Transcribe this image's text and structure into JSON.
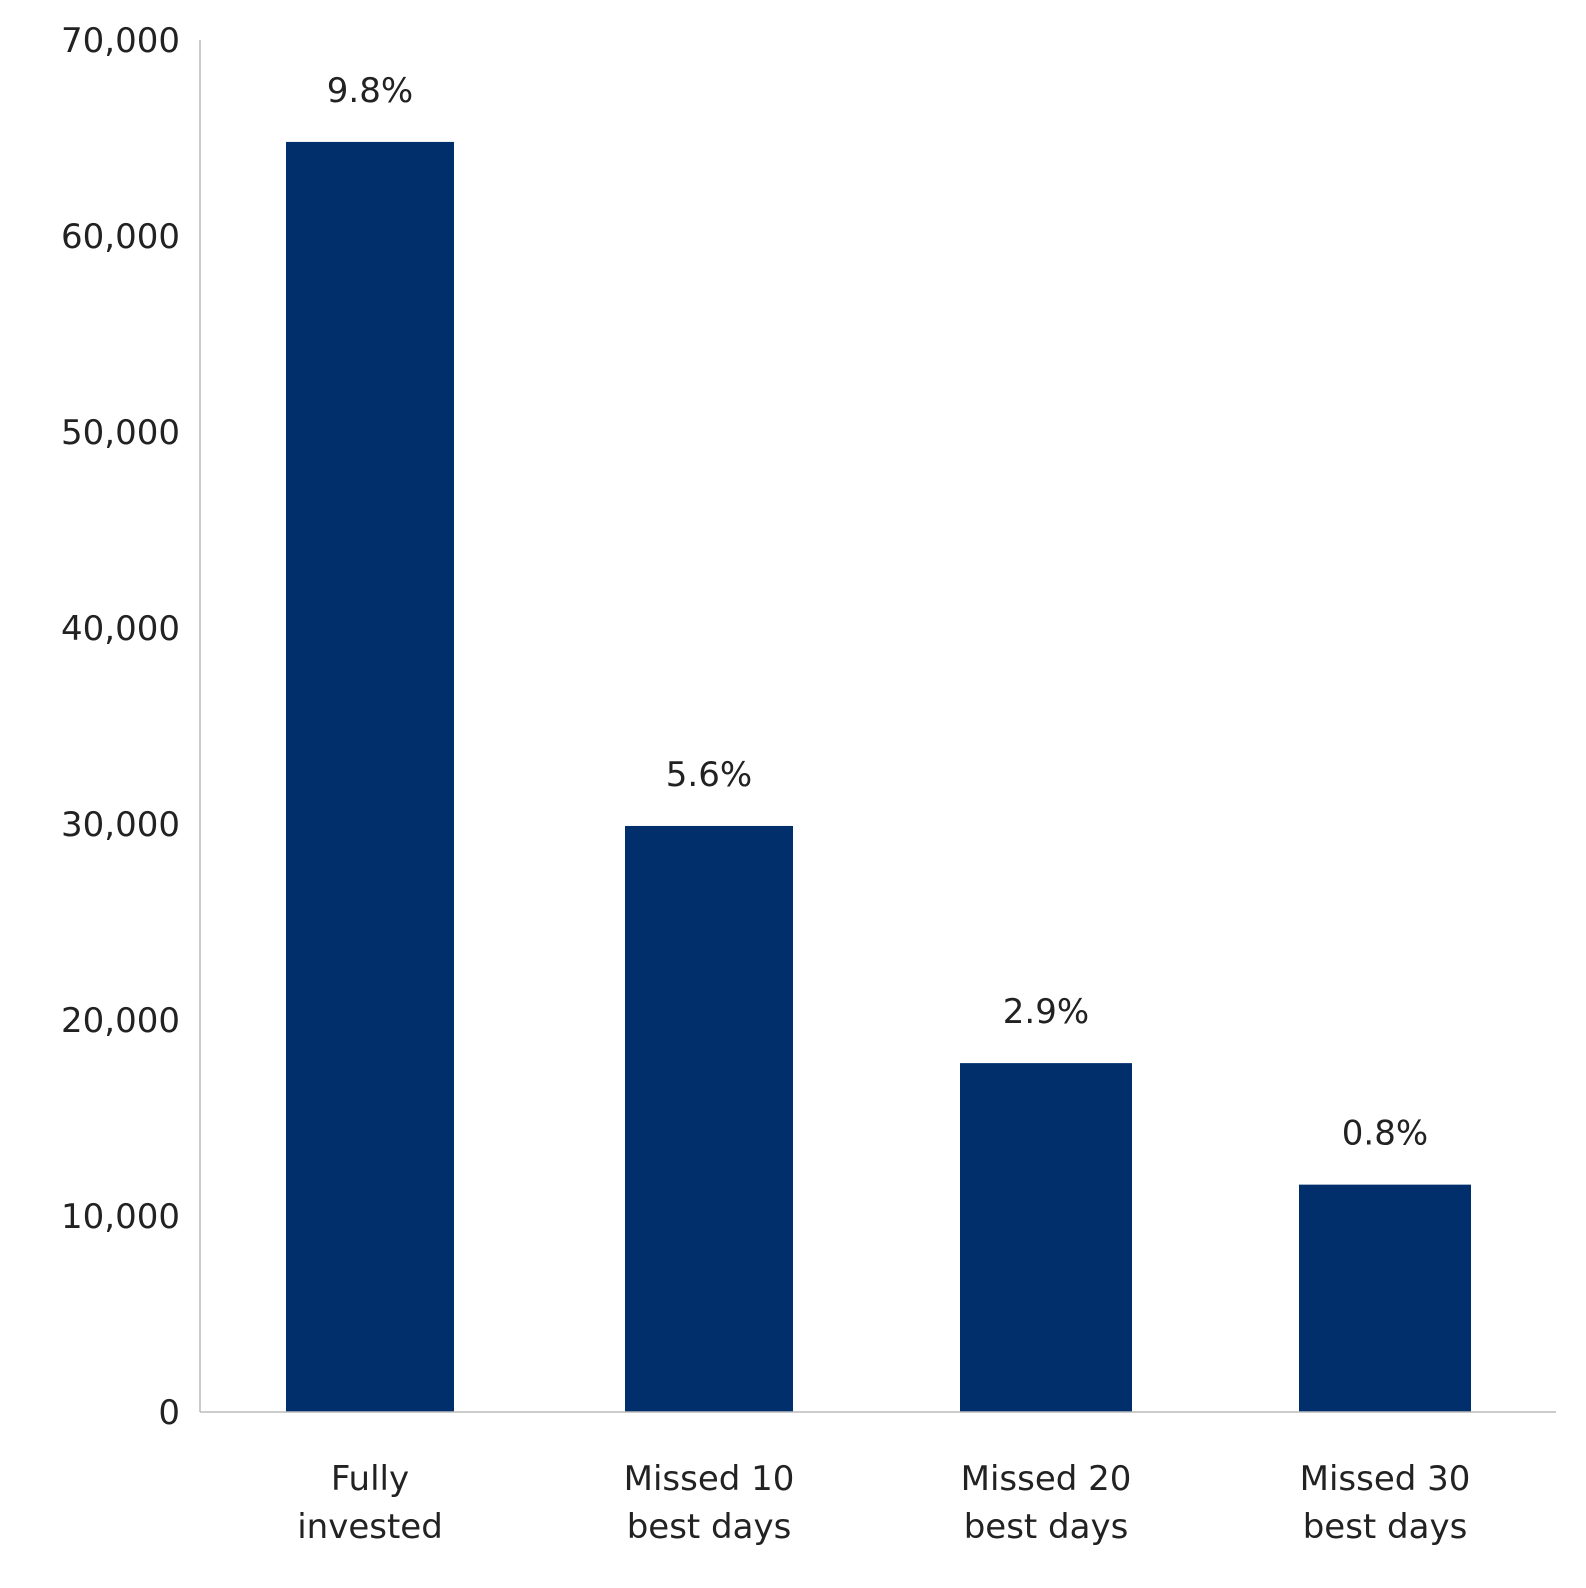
{
  "chart_data": {
    "type": "bar",
    "title": "",
    "xlabel": "",
    "ylabel": "",
    "ylim": [
      0,
      70000
    ],
    "yticks": [
      "0",
      "10,000",
      "20,000",
      "30,000",
      "40,000",
      "50,000",
      "60,000",
      "70,000"
    ],
    "ytick_values": [
      0,
      10000,
      20000,
      30000,
      40000,
      50000,
      60000,
      70000
    ],
    "categories": [
      [
        "Fully",
        "invested"
      ],
      [
        "Missed 10",
        "best days"
      ],
      [
        "Missed 20",
        "best days"
      ],
      [
        "Missed 30",
        "best days"
      ]
    ],
    "values": [
      64800,
      29900,
      17800,
      11600
    ],
    "data_labels": [
      "9.8%",
      "5.6%",
      "2.9%",
      "0.8%"
    ],
    "bar_color": "#002f6c",
    "axis_color": "#bbbbbb",
    "grid": false,
    "legend": "none"
  }
}
